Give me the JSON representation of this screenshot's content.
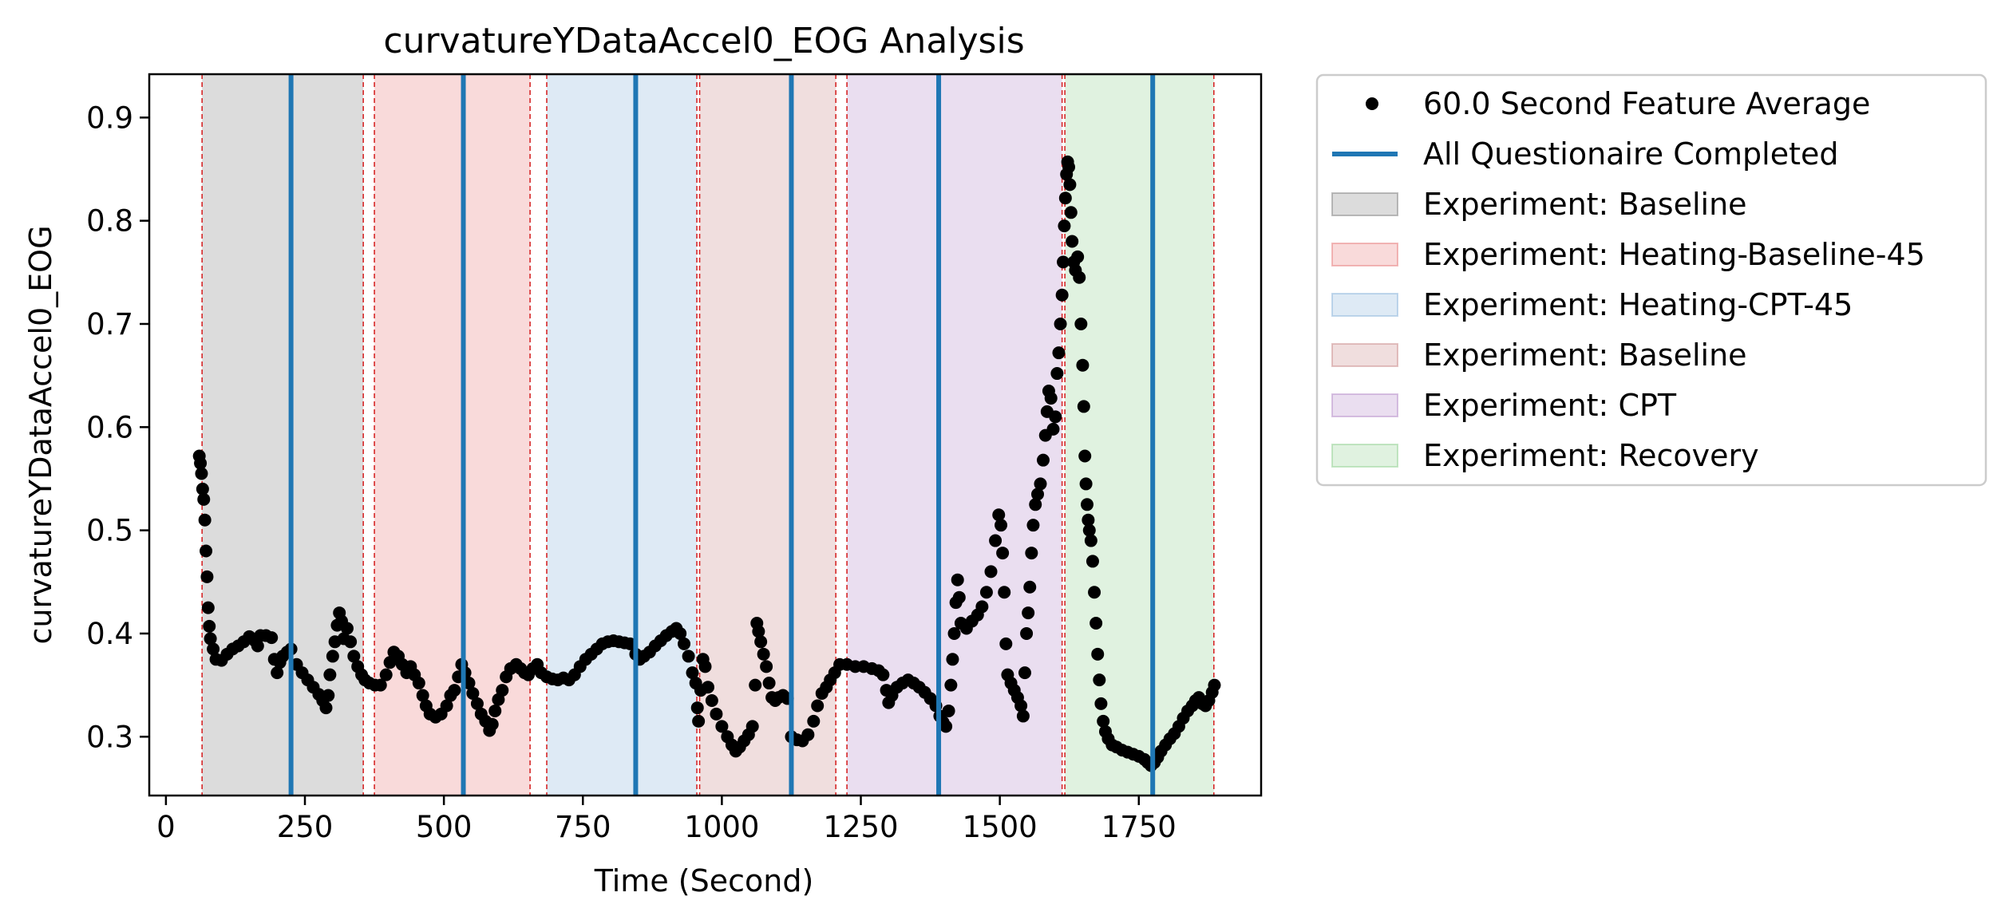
{
  "chart_data": {
    "type": "scatter",
    "title": "curvatureYDataAccel0_EOG Analysis",
    "xlabel": "Time (Second)",
    "ylabel": "curvatureYDataAccel0_EOG",
    "xlim": [
      -30,
      1970
    ],
    "ylim": [
      0.243,
      0.942
    ],
    "xticks": [
      0,
      250,
      500,
      750,
      1000,
      1250,
      1500,
      1750
    ],
    "yticks": [
      0.3,
      0.4,
      0.5,
      0.6,
      0.7,
      0.8,
      0.9
    ],
    "grid": false,
    "legend_placement": "outside-right-top",
    "regions": [
      {
        "label": "Experiment: Baseline",
        "start": 65,
        "end": 355,
        "color": "#808080"
      },
      {
        "label": "Experiment: Heating-Baseline-45",
        "start": 375,
        "end": 655,
        "color": "#e87a7a"
      },
      {
        "label": "Experiment: Heating-CPT-45",
        "start": 685,
        "end": 955,
        "color": "#8ab4dc"
      },
      {
        "label": "Experiment: Baseline",
        "start": 960,
        "end": 1205,
        "color": "#c98a8a"
      },
      {
        "label": "Experiment: CPT",
        "start": 1225,
        "end": 1612,
        "color": "#b48ac8"
      },
      {
        "label": "Experiment: Recovery",
        "start": 1617,
        "end": 1885,
        "color": "#8fd08f"
      }
    ],
    "region_boundaries": [
      65,
      355,
      375,
      655,
      685,
      955,
      960,
      1205,
      1225,
      1612,
      1617,
      1885
    ],
    "questionnaire_times": [
      225,
      535,
      845,
      1125,
      1390,
      1775
    ],
    "series": [
      {
        "name": "60.0 Second Feature Average",
        "points": [
          [
            60,
            0.572
          ],
          [
            62,
            0.565
          ],
          [
            64,
            0.555
          ],
          [
            66,
            0.54
          ],
          [
            68,
            0.53
          ],
          [
            70,
            0.51
          ],
          [
            72,
            0.48
          ],
          [
            74,
            0.455
          ],
          [
            76,
            0.425
          ],
          [
            78,
            0.407
          ],
          [
            80,
            0.395
          ],
          [
            85,
            0.385
          ],
          [
            90,
            0.375
          ],
          [
            100,
            0.374
          ],
          [
            110,
            0.38
          ],
          [
            120,
            0.385
          ],
          [
            130,
            0.388
          ],
          [
            140,
            0.392
          ],
          [
            150,
            0.397
          ],
          [
            160,
            0.393
          ],
          [
            165,
            0.388
          ],
          [
            170,
            0.398
          ],
          [
            180,
            0.398
          ],
          [
            190,
            0.396
          ],
          [
            195,
            0.375
          ],
          [
            200,
            0.362
          ],
          [
            205,
            0.372
          ],
          [
            210,
            0.378
          ],
          [
            218,
            0.382
          ],
          [
            225,
            0.385
          ],
          [
            235,
            0.37
          ],
          [
            245,
            0.362
          ],
          [
            255,
            0.355
          ],
          [
            265,
            0.348
          ],
          [
            275,
            0.341
          ],
          [
            282,
            0.335
          ],
          [
            288,
            0.328
          ],
          [
            292,
            0.34
          ],
          [
            295,
            0.36
          ],
          [
            300,
            0.378
          ],
          [
            304,
            0.392
          ],
          [
            308,
            0.408
          ],
          [
            312,
            0.42
          ],
          [
            316,
            0.412
          ],
          [
            320,
            0.395
          ],
          [
            326,
            0.405
          ],
          [
            332,
            0.392
          ],
          [
            338,
            0.378
          ],
          [
            345,
            0.368
          ],
          [
            352,
            0.36
          ],
          [
            358,
            0.355
          ],
          [
            366,
            0.352
          ],
          [
            376,
            0.35
          ],
          [
            386,
            0.35
          ],
          [
            396,
            0.36
          ],
          [
            403,
            0.372
          ],
          [
            410,
            0.382
          ],
          [
            418,
            0.378
          ],
          [
            425,
            0.37
          ],
          [
            433,
            0.362
          ],
          [
            440,
            0.368
          ],
          [
            447,
            0.36
          ],
          [
            455,
            0.352
          ],
          [
            462,
            0.34
          ],
          [
            468,
            0.33
          ],
          [
            475,
            0.322
          ],
          [
            485,
            0.319
          ],
          [
            495,
            0.322
          ],
          [
            505,
            0.33
          ],
          [
            512,
            0.34
          ],
          [
            519,
            0.345
          ],
          [
            526,
            0.358
          ],
          [
            532,
            0.37
          ],
          [
            538,
            0.362
          ],
          [
            545,
            0.352
          ],
          [
            552,
            0.342
          ],
          [
            560,
            0.332
          ],
          [
            567,
            0.322
          ],
          [
            575,
            0.315
          ],
          [
            582,
            0.306
          ],
          [
            587,
            0.312
          ],
          [
            592,
            0.325
          ],
          [
            598,
            0.336
          ],
          [
            605,
            0.345
          ],
          [
            612,
            0.358
          ],
          [
            620,
            0.366
          ],
          [
            630,
            0.37
          ],
          [
            638,
            0.366
          ],
          [
            645,
            0.362
          ],
          [
            652,
            0.36
          ],
          [
            660,
            0.366
          ],
          [
            668,
            0.37
          ],
          [
            675,
            0.362
          ],
          [
            685,
            0.358
          ],
          [
            695,
            0.356
          ],
          [
            705,
            0.355
          ],
          [
            715,
            0.357
          ],
          [
            725,
            0.355
          ],
          [
            735,
            0.36
          ],
          [
            745,
            0.368
          ],
          [
            755,
            0.375
          ],
          [
            765,
            0.38
          ],
          [
            775,
            0.385
          ],
          [
            785,
            0.39
          ],
          [
            795,
            0.392
          ],
          [
            805,
            0.393
          ],
          [
            815,
            0.392
          ],
          [
            825,
            0.391
          ],
          [
            835,
            0.39
          ],
          [
            845,
            0.38
          ],
          [
            852,
            0.375
          ],
          [
            860,
            0.378
          ],
          [
            870,
            0.382
          ],
          [
            880,
            0.388
          ],
          [
            890,
            0.393
          ],
          [
            900,
            0.398
          ],
          [
            910,
            0.402
          ],
          [
            918,
            0.405
          ],
          [
            925,
            0.4
          ],
          [
            932,
            0.39
          ],
          [
            940,
            0.378
          ],
          [
            947,
            0.362
          ],
          [
            953,
            0.352
          ],
          [
            956,
            0.328
          ],
          [
            958,
            0.315
          ],
          [
            962,
            0.345
          ],
          [
            966,
            0.375
          ],
          [
            970,
            0.368
          ],
          [
            975,
            0.348
          ],
          [
            982,
            0.335
          ],
          [
            990,
            0.322
          ],
          [
            1000,
            0.31
          ],
          [
            1010,
            0.3
          ],
          [
            1018,
            0.292
          ],
          [
            1025,
            0.286
          ],
          [
            1032,
            0.29
          ],
          [
            1040,
            0.296
          ],
          [
            1048,
            0.302
          ],
          [
            1055,
            0.31
          ],
          [
            1060,
            0.35
          ],
          [
            1063,
            0.41
          ],
          [
            1066,
            0.402
          ],
          [
            1070,
            0.392
          ],
          [
            1075,
            0.38
          ],
          [
            1080,
            0.368
          ],
          [
            1085,
            0.352
          ],
          [
            1090,
            0.338
          ],
          [
            1096,
            0.335
          ],
          [
            1102,
            0.338
          ],
          [
            1110,
            0.34
          ],
          [
            1118,
            0.337
          ],
          [
            1125,
            0.3
          ],
          [
            1135,
            0.297
          ],
          [
            1145,
            0.296
          ],
          [
            1155,
            0.302
          ],
          [
            1165,
            0.315
          ],
          [
            1172,
            0.33
          ],
          [
            1180,
            0.342
          ],
          [
            1188,
            0.348
          ],
          [
            1195,
            0.355
          ],
          [
            1203,
            0.362
          ],
          [
            1212,
            0.37
          ],
          [
            1225,
            0.37
          ],
          [
            1240,
            0.368
          ],
          [
            1255,
            0.368
          ],
          [
            1270,
            0.366
          ],
          [
            1282,
            0.364
          ],
          [
            1290,
            0.36
          ],
          [
            1296,
            0.345
          ],
          [
            1300,
            0.333
          ],
          [
            1306,
            0.34
          ],
          [
            1315,
            0.348
          ],
          [
            1325,
            0.352
          ],
          [
            1335,
            0.355
          ],
          [
            1345,
            0.352
          ],
          [
            1355,
            0.348
          ],
          [
            1365,
            0.343
          ],
          [
            1375,
            0.337
          ],
          [
            1385,
            0.33
          ],
          [
            1392,
            0.32
          ],
          [
            1398,
            0.314
          ],
          [
            1403,
            0.31
          ],
          [
            1408,
            0.325
          ],
          [
            1412,
            0.35
          ],
          [
            1415,
            0.375
          ],
          [
            1418,
            0.4
          ],
          [
            1421,
            0.43
          ],
          [
            1424,
            0.452
          ],
          [
            1427,
            0.435
          ],
          [
            1430,
            0.41
          ],
          [
            1440,
            0.405
          ],
          [
            1450,
            0.412
          ],
          [
            1460,
            0.418
          ],
          [
            1468,
            0.426
          ],
          [
            1476,
            0.44
          ],
          [
            1484,
            0.46
          ],
          [
            1492,
            0.49
          ],
          [
            1498,
            0.515
          ],
          [
            1502,
            0.505
          ],
          [
            1505,
            0.478
          ],
          [
            1508,
            0.44
          ],
          [
            1511,
            0.39
          ],
          [
            1514,
            0.36
          ],
          [
            1520,
            0.352
          ],
          [
            1526,
            0.345
          ],
          [
            1532,
            0.338
          ],
          [
            1538,
            0.33
          ],
          [
            1542,
            0.32
          ],
          [
            1545,
            0.362
          ],
          [
            1548,
            0.4
          ],
          [
            1551,
            0.42
          ],
          [
            1554,
            0.445
          ],
          [
            1557,
            0.478
          ],
          [
            1560,
            0.505
          ],
          [
            1564,
            0.525
          ],
          [
            1568,
            0.535
          ],
          [
            1573,
            0.545
          ],
          [
            1578,
            0.568
          ],
          [
            1582,
            0.592
          ],
          [
            1585,
            0.615
          ],
          [
            1588,
            0.635
          ],
          [
            1592,
            0.628
          ],
          [
            1596,
            0.598
          ],
          [
            1600,
            0.61
          ],
          [
            1603,
            0.652
          ],
          [
            1606,
            0.672
          ],
          [
            1609,
            0.7
          ],
          [
            1612,
            0.728
          ],
          [
            1614,
            0.76
          ],
          [
            1616,
            0.795
          ],
          [
            1618,
            0.822
          ],
          [
            1620,
            0.845
          ],
          [
            1622,
            0.857
          ],
          [
            1624,
            0.852
          ],
          [
            1626,
            0.835
          ],
          [
            1628,
            0.808
          ],
          [
            1630,
            0.78
          ],
          [
            1633,
            0.76
          ],
          [
            1636,
            0.752
          ],
          [
            1640,
            0.765
          ],
          [
            1643,
            0.745
          ],
          [
            1646,
            0.7
          ],
          [
            1649,
            0.66
          ],
          [
            1651,
            0.62
          ],
          [
            1653,
            0.572
          ],
          [
            1655,
            0.545
          ],
          [
            1657,
            0.525
          ],
          [
            1659,
            0.51
          ],
          [
            1661,
            0.5
          ],
          [
            1664,
            0.49
          ],
          [
            1667,
            0.47
          ],
          [
            1670,
            0.44
          ],
          [
            1673,
            0.41
          ],
          [
            1676,
            0.38
          ],
          [
            1679,
            0.355
          ],
          [
            1682,
            0.332
          ],
          [
            1686,
            0.315
          ],
          [
            1690,
            0.305
          ],
          [
            1695,
            0.298
          ],
          [
            1702,
            0.292
          ],
          [
            1710,
            0.29
          ],
          [
            1720,
            0.287
          ],
          [
            1730,
            0.285
          ],
          [
            1740,
            0.283
          ],
          [
            1750,
            0.281
          ],
          [
            1760,
            0.278
          ],
          [
            1766,
            0.275
          ],
          [
            1772,
            0.272
          ],
          [
            1778,
            0.275
          ],
          [
            1784,
            0.28
          ],
          [
            1790,
            0.286
          ],
          [
            1798,
            0.292
          ],
          [
            1806,
            0.298
          ],
          [
            1814,
            0.303
          ],
          [
            1822,
            0.31
          ],
          [
            1830,
            0.318
          ],
          [
            1838,
            0.325
          ],
          [
            1846,
            0.33
          ],
          [
            1852,
            0.335
          ],
          [
            1858,
            0.338
          ],
          [
            1864,
            0.332
          ],
          [
            1870,
            0.33
          ],
          [
            1876,
            0.335
          ],
          [
            1882,
            0.343
          ],
          [
            1886,
            0.35
          ]
        ]
      }
    ],
    "legend": [
      {
        "label": "60.0 Second Feature Average",
        "kind": "marker",
        "color": "#000000"
      },
      {
        "label": "All Questionaire Completed",
        "kind": "line",
        "color": "#1f77b4"
      },
      {
        "label": "Experiment: Baseline",
        "kind": "patch",
        "color": "#808080"
      },
      {
        "label": "Experiment: Heating-Baseline-45",
        "kind": "patch",
        "color": "#e87a7a"
      },
      {
        "label": "Experiment: Heating-CPT-45",
        "kind": "patch",
        "color": "#8ab4dc"
      },
      {
        "label": "Experiment: Baseline",
        "kind": "patch",
        "color": "#c98a8a"
      },
      {
        "label": "Experiment: CPT",
        "kind": "patch",
        "color": "#b48ac8"
      },
      {
        "label": "Experiment: Recovery",
        "kind": "patch",
        "color": "#8fd08f"
      }
    ]
  }
}
